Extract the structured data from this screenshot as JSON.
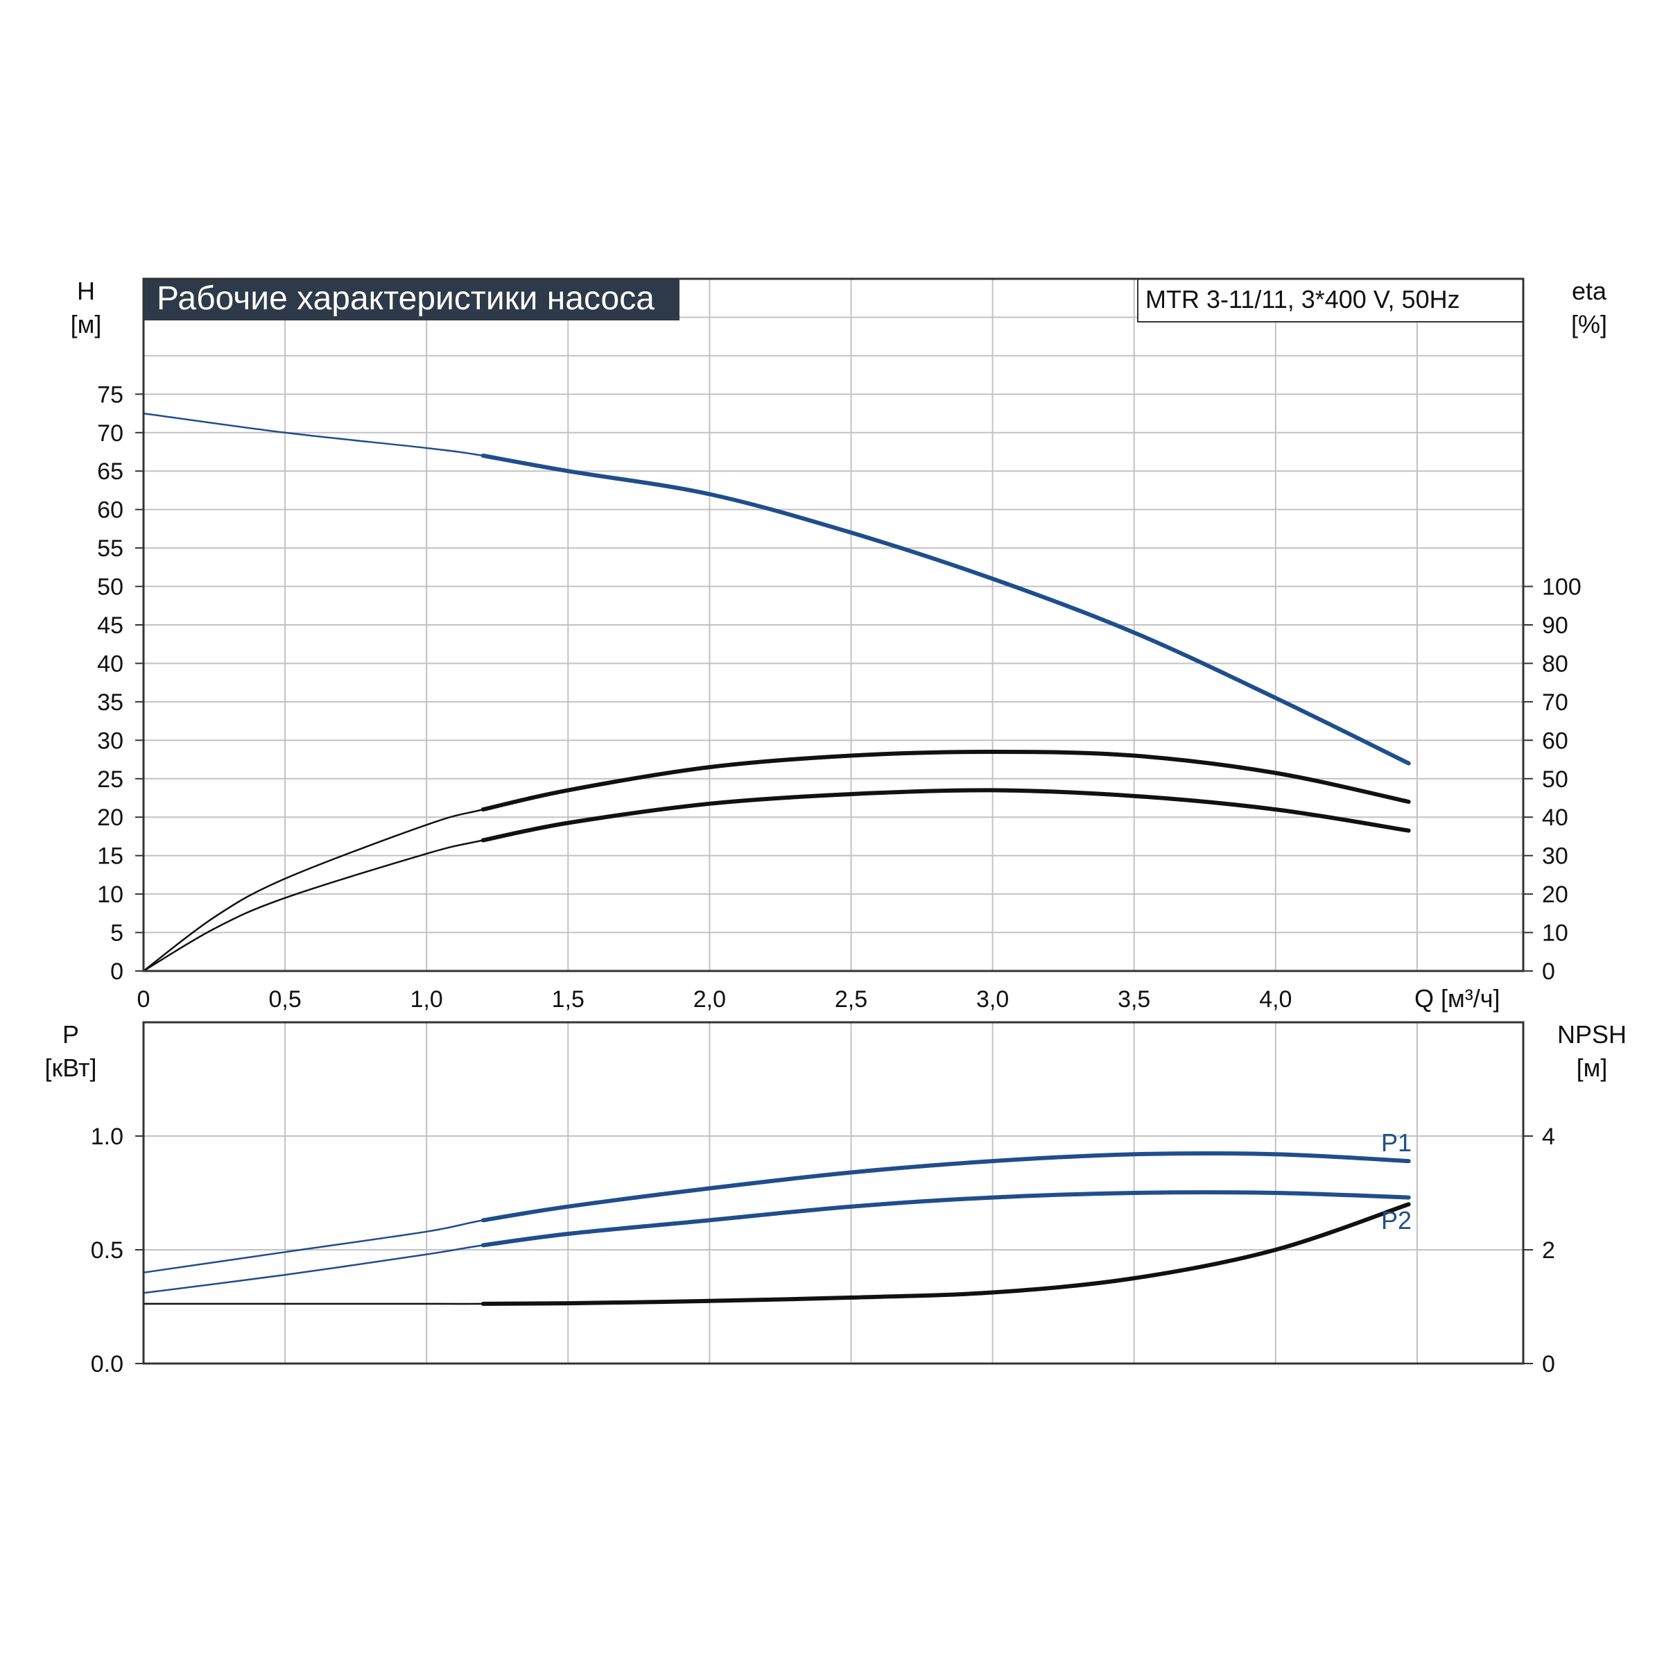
{
  "colors": {
    "accent_blue": "#1f4e8c",
    "curve_black": "#111111",
    "title_bg": "#2e3a4a",
    "title_text": "#ffffff",
    "grid": "#c2c2c2"
  },
  "chart_data": [
    {
      "type": "line",
      "title": "Рабочие характеристики насоса",
      "subtitle": "MTR 3-11/11, 3*400 V, 50Hz",
      "xlabel": "Q [м³/ч]",
      "ylabel": [
        "H",
        "[м]"
      ],
      "y2label": [
        "eta",
        "[%]"
      ],
      "xlim": [
        0,
        4.875
      ],
      "ylim": [
        0,
        90
      ],
      "y2lim": [
        0,
        180
      ],
      "x_ticks": [
        "0",
        "0,5",
        "1,0",
        "1,5",
        "2,0",
        "2,5",
        "3,0",
        "3,5",
        "4,0"
      ],
      "x_tick_values": [
        0,
        0.5,
        1.0,
        1.5,
        2.0,
        2.5,
        3.0,
        3.5,
        4.0
      ],
      "y_ticks": [
        0,
        5,
        10,
        15,
        20,
        25,
        30,
        35,
        40,
        45,
        50,
        55,
        60,
        65,
        70,
        75
      ],
      "y2_ticks": [
        0,
        10,
        20,
        30,
        40,
        50,
        60,
        70,
        80,
        90,
        100
      ],
      "grid": true,
      "series": [
        {
          "axis": "left",
          "color": "#1f4e8c",
          "x": [
            0,
            0.5,
            1.0,
            1.2,
            1.5,
            2.0,
            2.5,
            3.0,
            3.5,
            4.0,
            4.47
          ],
          "y": [
            72.5,
            70,
            68,
            67,
            65,
            62,
            57,
            51,
            44,
            35.5,
            27
          ]
        },
        {
          "axis": "right",
          "color": "#111111",
          "x": [
            0,
            0.25,
            0.5,
            1.0,
            1.2,
            1.5,
            2.0,
            2.5,
            3.0,
            3.5,
            4.0,
            4.47
          ],
          "y": [
            0,
            14,
            24,
            38,
            42,
            47,
            53,
            56,
            57,
            56,
            51.5,
            44
          ]
        },
        {
          "axis": "right",
          "color": "#111111",
          "x": [
            0,
            0.25,
            0.5,
            1.0,
            1.2,
            1.5,
            2.0,
            2.5,
            3.0,
            3.5,
            4.0,
            4.47
          ],
          "y": [
            0,
            11,
            19,
            30.5,
            34,
            38.5,
            43.5,
            46,
            47,
            45.5,
            42,
            36.5
          ]
        }
      ]
    },
    {
      "type": "line",
      "xlim": [
        0,
        4.875
      ],
      "ylim": [
        0,
        1.5
      ],
      "y2lim": [
        0,
        6
      ],
      "ylabel": [
        "P",
        "[кВт]"
      ],
      "y2label": [
        "NPSH",
        "[м]"
      ],
      "y_ticks": [
        "0.0",
        "0.5",
        "1.0"
      ],
      "y_tick_values": [
        0,
        0.5,
        1.0
      ],
      "y2_ticks": [
        0,
        2,
        4
      ],
      "x_tick_values": [
        0,
        0.5,
        1.0,
        1.5,
        2.0,
        2.5,
        3.0,
        3.5,
        4.0
      ],
      "grid": true,
      "series": [
        {
          "name": "P1",
          "axis": "left",
          "color": "#1f4e8c",
          "x": [
            0,
            0.5,
            1.0,
            1.2,
            1.5,
            2.0,
            2.5,
            3.0,
            3.5,
            4.0,
            4.47
          ],
          "y": [
            0.4,
            0.49,
            0.58,
            0.63,
            0.69,
            0.77,
            0.84,
            0.89,
            0.92,
            0.92,
            0.89
          ]
        },
        {
          "name": "P2",
          "axis": "left",
          "color": "#1f4e8c",
          "x": [
            0,
            0.5,
            1.0,
            1.2,
            1.5,
            2.0,
            2.5,
            3.0,
            3.5,
            4.0,
            4.47
          ],
          "y": [
            0.31,
            0.39,
            0.48,
            0.52,
            0.57,
            0.63,
            0.69,
            0.73,
            0.75,
            0.75,
            0.73
          ]
        },
        {
          "name": "",
          "axis": "right",
          "color": "#111111",
          "x": [
            0,
            0.5,
            1.0,
            1.2,
            1.5,
            2.0,
            2.5,
            3.0,
            3.5,
            4.0,
            4.47
          ],
          "y": [
            1.05,
            1.05,
            1.05,
            1.05,
            1.06,
            1.1,
            1.16,
            1.25,
            1.5,
            2.0,
            2.8
          ]
        }
      ]
    }
  ]
}
